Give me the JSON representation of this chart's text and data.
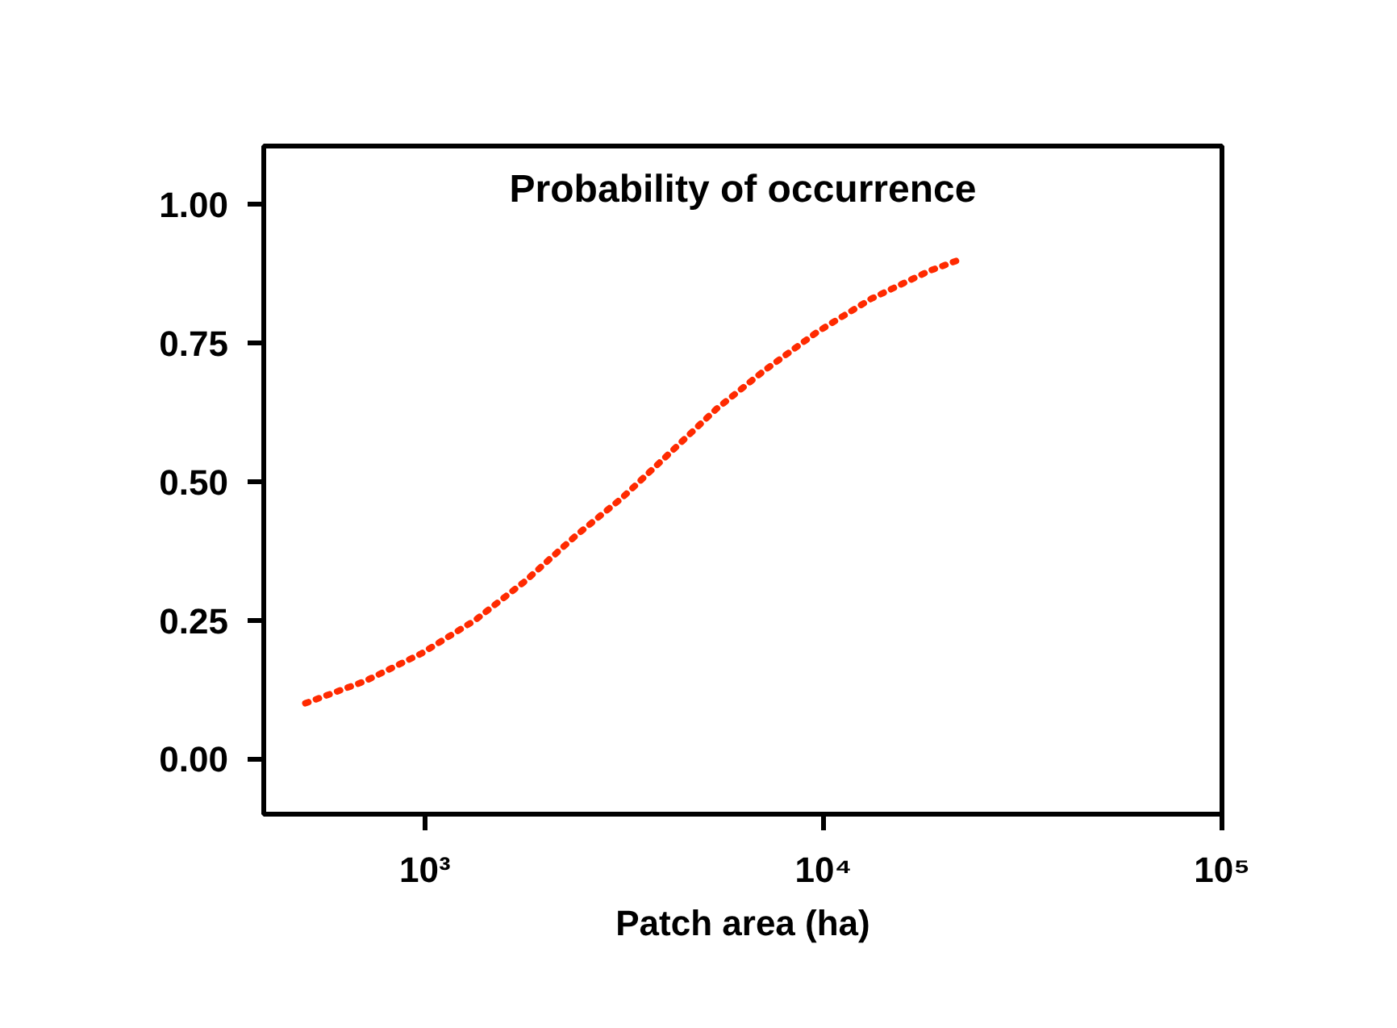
{
  "chart_data": {
    "type": "line",
    "title": "Probability of occurrence",
    "xlabel": "Patch area (ha)",
    "log": "x",
    "x": [
      501,
      708,
      981,
      1337,
      1782,
      2371,
      3119,
      4096,
      5370,
      7100,
      9660,
      13210,
      18450,
      21930
    ],
    "series": [
      {
        "color": "#ff2a00",
        "values": [
          0.1,
          0.14,
          0.19,
          0.25,
          0.32,
          0.4,
          0.47,
          0.55,
          0.63,
          0.7,
          0.77,
          0.83,
          0.88,
          0.9
        ]
      }
    ],
    "line_style": "dotted",
    "marker": "none",
    "grid": false,
    "xlim": [
      394,
      100000
    ],
    "ylim": [
      -0.1,
      1.105
    ],
    "xticks": [
      {
        "value": 1000,
        "label": "10³"
      },
      {
        "value": 10000,
        "label": "10⁴"
      },
      {
        "value": 100000,
        "label": "10⁵"
      }
    ],
    "yticks": [
      {
        "value": 0,
        "label": "0.00"
      },
      {
        "value": 0.25,
        "label": "0.25"
      },
      {
        "value": 0.5,
        "label": "0.50"
      },
      {
        "value": 0.75,
        "label": "0.75"
      },
      {
        "value": 1,
        "label": "1.00"
      }
    ]
  }
}
